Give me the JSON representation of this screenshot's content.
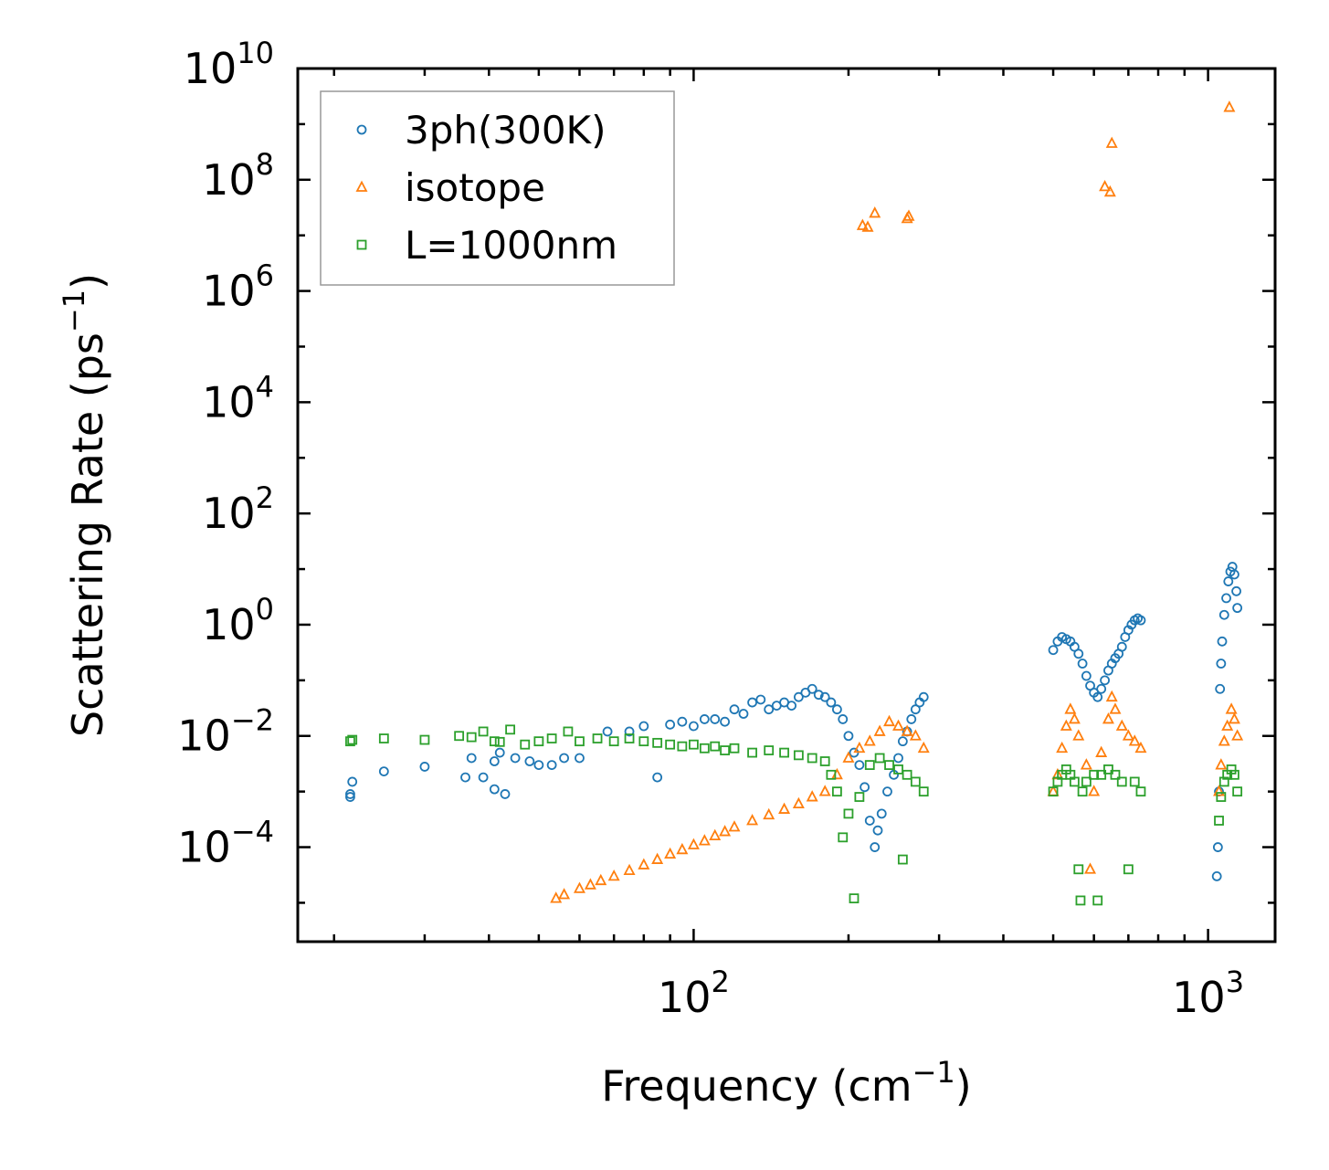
{
  "chart_data": {
    "type": "scatter",
    "title": "",
    "xlabel": {
      "base": "Frequency (cm",
      "sup": "−1",
      "tail": ")"
    },
    "ylabel": {
      "base": "Scattering Rate (ps",
      "sup": "−1",
      "tail": ")"
    },
    "xscale": "log",
    "yscale": "log",
    "xlim": [
      17,
      1350
    ],
    "ylim": [
      2e-06,
      10000000000
    ],
    "x_ticks": [
      {
        "value": 100,
        "base": "10",
        "exp": "2"
      },
      {
        "value": 1000,
        "base": "10",
        "exp": "3"
      }
    ],
    "y_ticks": [
      {
        "value": 0.0001,
        "base": "10",
        "exp": "−4"
      },
      {
        "value": 0.01,
        "base": "10",
        "exp": "−2"
      },
      {
        "value": 1,
        "base": "10",
        "exp": "0"
      },
      {
        "value": 100,
        "base": "10",
        "exp": "2"
      },
      {
        "value": 10000,
        "base": "10",
        "exp": "4"
      },
      {
        "value": 1000000,
        "base": "10",
        "exp": "6"
      },
      {
        "value": 100000000,
        "base": "10",
        "exp": "8"
      },
      {
        "value": 10000000000,
        "base": "10",
        "exp": "10"
      }
    ],
    "legend_position": "top-left",
    "series": [
      {
        "name": "3ph(300K)",
        "marker": "circle",
        "color": "#1f77b4",
        "points": [
          [
            21.5,
            0.0008
          ],
          [
            21.5,
            0.0009
          ],
          [
            21.7,
            0.0015
          ],
          [
            25,
            0.0023
          ],
          [
            30,
            0.0028
          ],
          [
            36,
            0.0018
          ],
          [
            37,
            0.004
          ],
          [
            39,
            0.0018
          ],
          [
            41,
            0.0035
          ],
          [
            41,
            0.0011
          ],
          [
            42,
            0.005
          ],
          [
            43,
            0.0009
          ],
          [
            45,
            0.004
          ],
          [
            48,
            0.0035
          ],
          [
            50,
            0.003
          ],
          [
            53,
            0.003
          ],
          [
            56,
            0.004
          ],
          [
            60,
            0.004
          ],
          [
            68,
            0.012
          ],
          [
            75,
            0.012
          ],
          [
            80,
            0.015
          ],
          [
            85,
            0.0018
          ],
          [
            90,
            0.016
          ],
          [
            95,
            0.018
          ],
          [
            100,
            0.015
          ],
          [
            105,
            0.02
          ],
          [
            110,
            0.02
          ],
          [
            115,
            0.018
          ],
          [
            120,
            0.03
          ],
          [
            125,
            0.025
          ],
          [
            130,
            0.04
          ],
          [
            135,
            0.045
          ],
          [
            140,
            0.03
          ],
          [
            145,
            0.035
          ],
          [
            150,
            0.04
          ],
          [
            155,
            0.035
          ],
          [
            160,
            0.05
          ],
          [
            165,
            0.06
          ],
          [
            170,
            0.07
          ],
          [
            175,
            0.055
          ],
          [
            180,
            0.05
          ],
          [
            185,
            0.04
          ],
          [
            190,
            0.03
          ],
          [
            195,
            0.02
          ],
          [
            200,
            0.01
          ],
          [
            205,
            0.005
          ],
          [
            210,
            0.003
          ],
          [
            215,
            0.0012
          ],
          [
            220,
            0.0003
          ],
          [
            225,
            0.0001
          ],
          [
            228,
            0.0002
          ],
          [
            232,
            0.0004
          ],
          [
            238,
            0.001
          ],
          [
            245,
            0.002
          ],
          [
            250,
            0.004
          ],
          [
            255,
            0.008
          ],
          [
            260,
            0.012
          ],
          [
            265,
            0.02
          ],
          [
            270,
            0.03
          ],
          [
            275,
            0.04
          ],
          [
            280,
            0.05
          ],
          [
            500,
            0.35
          ],
          [
            510,
            0.5
          ],
          [
            520,
            0.6
          ],
          [
            530,
            0.55
          ],
          [
            540,
            0.5
          ],
          [
            550,
            0.4
          ],
          [
            560,
            0.3
          ],
          [
            570,
            0.2
          ],
          [
            580,
            0.12
          ],
          [
            590,
            0.08
          ],
          [
            600,
            0.06
          ],
          [
            610,
            0.05
          ],
          [
            620,
            0.07
          ],
          [
            630,
            0.1
          ],
          [
            640,
            0.15
          ],
          [
            650,
            0.2
          ],
          [
            660,
            0.25
          ],
          [
            670,
            0.3
          ],
          [
            680,
            0.4
          ],
          [
            690,
            0.6
          ],
          [
            700,
            0.8
          ],
          [
            710,
            1.0
          ],
          [
            720,
            1.2
          ],
          [
            730,
            1.3
          ],
          [
            740,
            1.2
          ],
          [
            1040,
            3e-05
          ],
          [
            1045,
            0.0001
          ],
          [
            1050,
            0.001
          ],
          [
            1055,
            0.07
          ],
          [
            1060,
            0.2
          ],
          [
            1065,
            0.5
          ],
          [
            1075,
            1.5
          ],
          [
            1085,
            3
          ],
          [
            1095,
            6
          ],
          [
            1105,
            9
          ],
          [
            1115,
            11
          ],
          [
            1125,
            8
          ],
          [
            1135,
            4
          ],
          [
            1140,
            2
          ]
        ]
      },
      {
        "name": "isotope",
        "marker": "triangle",
        "color": "#ff7f0e",
        "points": [
          [
            54,
            1.2e-05
          ],
          [
            56,
            1.4e-05
          ],
          [
            60,
            1.8e-05
          ],
          [
            63,
            2.1e-05
          ],
          [
            66,
            2.5e-05
          ],
          [
            70,
            3e-05
          ],
          [
            75,
            3.8e-05
          ],
          [
            80,
            4.8e-05
          ],
          [
            85,
            6e-05
          ],
          [
            90,
            7.5e-05
          ],
          [
            95,
            9e-05
          ],
          [
            100,
            0.00011
          ],
          [
            105,
            0.00013
          ],
          [
            110,
            0.00016
          ],
          [
            115,
            0.00019
          ],
          [
            120,
            0.00023
          ],
          [
            130,
            0.0003
          ],
          [
            140,
            0.00038
          ],
          [
            150,
            0.00048
          ],
          [
            160,
            0.0006
          ],
          [
            170,
            0.0008
          ],
          [
            180,
            0.001
          ],
          [
            190,
            0.002
          ],
          [
            200,
            0.004
          ],
          [
            210,
            0.006
          ],
          [
            220,
            0.008
          ],
          [
            230,
            0.012
          ],
          [
            240,
            0.018
          ],
          [
            250,
            0.015
          ],
          [
            260,
            0.012
          ],
          [
            270,
            0.01
          ],
          [
            280,
            0.006
          ],
          [
            213,
            15000000
          ],
          [
            218,
            14000000
          ],
          [
            225,
            25000000
          ],
          [
            260,
            20000000
          ],
          [
            262,
            22000000
          ],
          [
            500,
            0.001
          ],
          [
            510,
            0.002
          ],
          [
            520,
            0.006
          ],
          [
            530,
            0.015
          ],
          [
            540,
            0.03
          ],
          [
            550,
            0.02
          ],
          [
            560,
            0.01
          ],
          [
            580,
            0.003
          ],
          [
            590,
            4e-05
          ],
          [
            600,
            0.001
          ],
          [
            620,
            0.005
          ],
          [
            640,
            0.02
          ],
          [
            650,
            0.05
          ],
          [
            660,
            0.03
          ],
          [
            680,
            0.015
          ],
          [
            700,
            0.01
          ],
          [
            720,
            0.008
          ],
          [
            740,
            0.006
          ],
          [
            630,
            75000000
          ],
          [
            645,
            60000000
          ],
          [
            650,
            450000000
          ],
          [
            1050,
            0.001
          ],
          [
            1060,
            0.003
          ],
          [
            1075,
            0.008
          ],
          [
            1090,
            0.015
          ],
          [
            1110,
            0.03
          ],
          [
            1125,
            0.02
          ],
          [
            1140,
            0.01
          ],
          [
            1100,
            2000000000
          ]
        ]
      },
      {
        "name": "L=1000nm",
        "marker": "square",
        "color": "#2ca02c",
        "points": [
          [
            21.5,
            0.008
          ],
          [
            21.7,
            0.0085
          ],
          [
            25,
            0.009
          ],
          [
            30,
            0.0085
          ],
          [
            35,
            0.01
          ],
          [
            37,
            0.0095
          ],
          [
            39,
            0.012
          ],
          [
            41,
            0.008
          ],
          [
            42,
            0.0078
          ],
          [
            44,
            0.013
          ],
          [
            47,
            0.007
          ],
          [
            50,
            0.008
          ],
          [
            53,
            0.009
          ],
          [
            57,
            0.012
          ],
          [
            60,
            0.008
          ],
          [
            65,
            0.009
          ],
          [
            70,
            0.008
          ],
          [
            75,
            0.009
          ],
          [
            80,
            0.008
          ],
          [
            85,
            0.0075
          ],
          [
            90,
            0.007
          ],
          [
            95,
            0.0065
          ],
          [
            100,
            0.007
          ],
          [
            105,
            0.006
          ],
          [
            110,
            0.0065
          ],
          [
            115,
            0.0055
          ],
          [
            120,
            0.006
          ],
          [
            130,
            0.005
          ],
          [
            140,
            0.0055
          ],
          [
            150,
            0.005
          ],
          [
            160,
            0.0045
          ],
          [
            170,
            0.004
          ],
          [
            180,
            0.0035
          ],
          [
            185,
            0.002
          ],
          [
            190,
            0.001
          ],
          [
            195,
            0.00015
          ],
          [
            200,
            0.0004
          ],
          [
            205,
            1.2e-05
          ],
          [
            210,
            0.0008
          ],
          [
            220,
            0.003
          ],
          [
            230,
            0.004
          ],
          [
            240,
            0.003
          ],
          [
            250,
            0.0025
          ],
          [
            255,
            6e-05
          ],
          [
            260,
            0.002
          ],
          [
            270,
            0.0015
          ],
          [
            280,
            0.001
          ],
          [
            500,
            0.001
          ],
          [
            510,
            0.0015
          ],
          [
            520,
            0.002
          ],
          [
            530,
            0.0025
          ],
          [
            540,
            0.002
          ],
          [
            550,
            0.0015
          ],
          [
            560,
            4e-05
          ],
          [
            565,
            1.1e-05
          ],
          [
            570,
            0.001
          ],
          [
            580,
            0.0015
          ],
          [
            600,
            0.002
          ],
          [
            610,
            1.1e-05
          ],
          [
            620,
            0.002
          ],
          [
            640,
            0.0025
          ],
          [
            660,
            0.002
          ],
          [
            680,
            0.0015
          ],
          [
            700,
            4e-05
          ],
          [
            720,
            0.0015
          ],
          [
            740,
            0.001
          ],
          [
            1050,
            0.0003
          ],
          [
            1060,
            0.0008
          ],
          [
            1075,
            0.0015
          ],
          [
            1090,
            0.002
          ],
          [
            1110,
            0.0025
          ],
          [
            1125,
            0.002
          ],
          [
            1140,
            0.001
          ]
        ]
      }
    ]
  }
}
